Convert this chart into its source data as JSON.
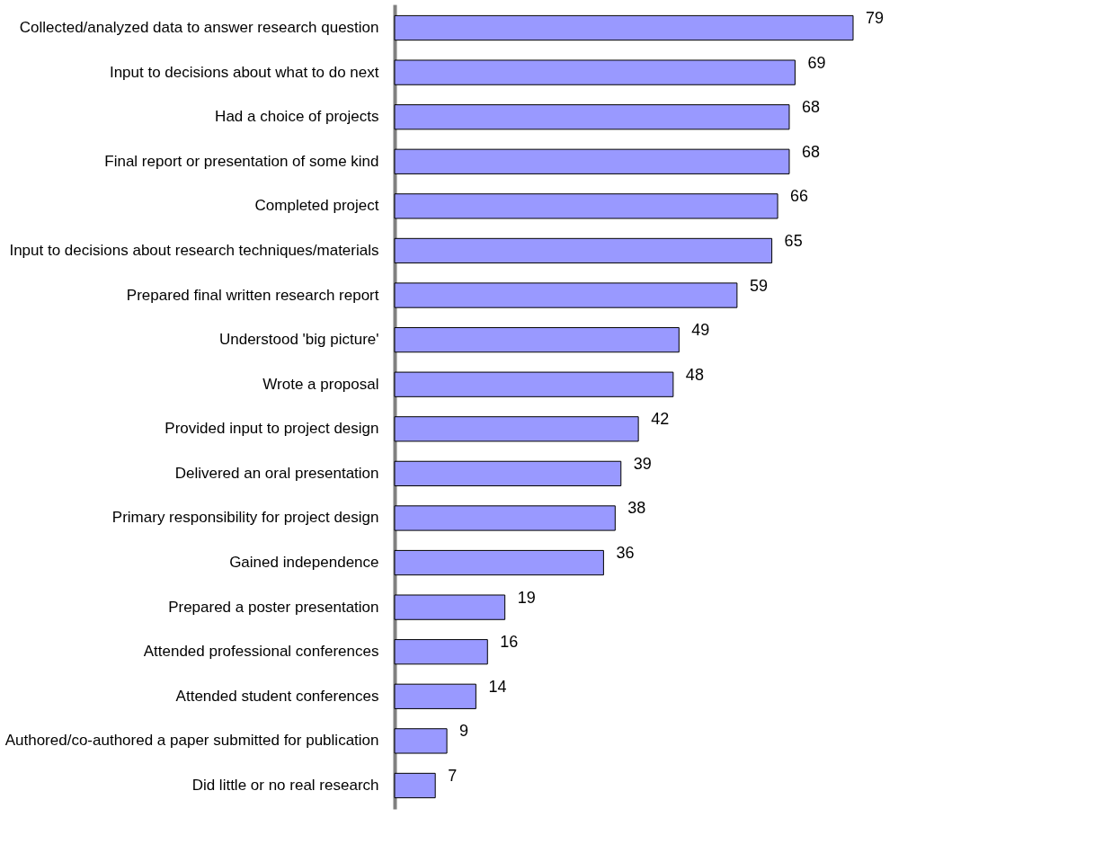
{
  "chart_data": {
    "type": "bar",
    "orientation": "horizontal",
    "data_labels": true,
    "grid": false,
    "color": "#9999ff",
    "categories": [
      "Collected/analyzed data to answer research question",
      "Input to decisions about what to do next",
      "Had a choice of projects",
      "Final report or presentation of some kind",
      "Completed project",
      "Input to decisions about research techniques/materials",
      "Prepared final written research report",
      "Understood 'big picture'",
      "Wrote a proposal",
      "Provided input to project design",
      "Delivered an oral presentation",
      "Primary responsibility for project design",
      "Gained independence",
      "Prepared a poster presentation",
      "Attended professional conferences",
      "Attended student conferences",
      "Authored/co-authored a paper submitted for publication",
      "Did little or no real research"
    ],
    "values": [
      79,
      69,
      68,
      68,
      66,
      65,
      59,
      49,
      48,
      42,
      39,
      38,
      36,
      19,
      16,
      14,
      9,
      7
    ]
  }
}
